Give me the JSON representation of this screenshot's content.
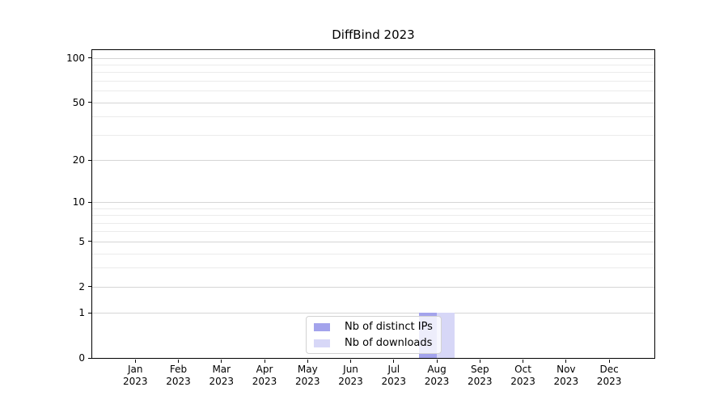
{
  "chart_data": {
    "type": "bar",
    "title": "DiffBind 2023",
    "categories": [
      "Jan",
      "Feb",
      "Mar",
      "Apr",
      "May",
      "Jun",
      "Jul",
      "Aug",
      "Sep",
      "Oct",
      "Nov",
      "Dec"
    ],
    "category_year": "2023",
    "series": [
      {
        "name": "Nb of distinct IPs",
        "color": "#a3a3ec",
        "values": [
          0,
          0,
          0,
          0,
          0,
          0,
          0,
          1,
          0,
          0,
          0,
          0
        ]
      },
      {
        "name": "Nb of downloads",
        "color": "#d7d7f7",
        "values": [
          0,
          0,
          0,
          0,
          0,
          0,
          0,
          1,
          0,
          0,
          0,
          0
        ]
      }
    ],
    "xlabel": "",
    "ylabel": "",
    "yscale": "log1p",
    "ylim": [
      0,
      113
    ],
    "ytick_values": [
      0,
      1,
      2,
      5,
      10,
      20,
      50,
      100
    ],
    "grid_major": [
      1,
      2,
      5,
      10,
      20,
      50,
      100
    ],
    "grid_minor": [
      3,
      4,
      6,
      7,
      8,
      9,
      30,
      40,
      60,
      70,
      80,
      90
    ],
    "grid": true,
    "legend_position": "lower-center"
  },
  "colors": {
    "grid_major": "#d5d5d5",
    "grid_minor": "#ebebeb",
    "axis": "#000000",
    "legend_border": "#d2d2d2"
  }
}
